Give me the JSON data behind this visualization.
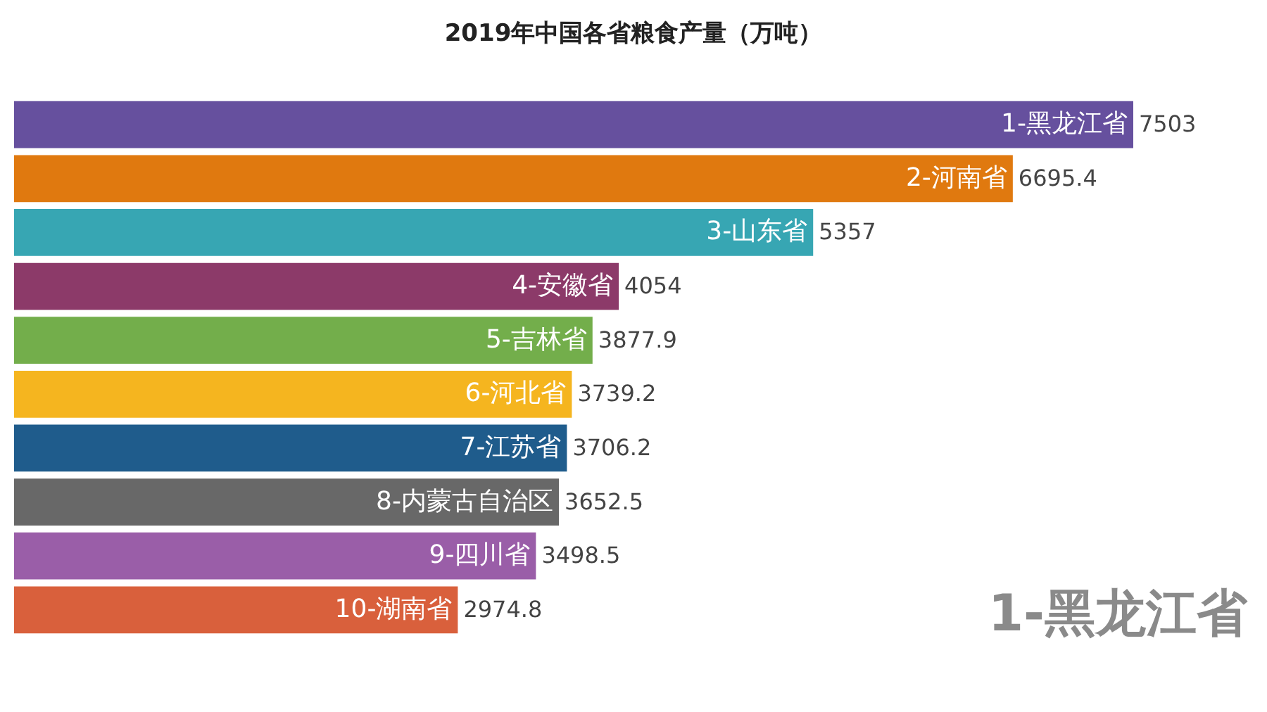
{
  "chart_data": {
    "type": "bar",
    "orientation": "horizontal",
    "title": "2019年中国各省粮食产量（万吨）",
    "categories": [
      "1-黑龙江省",
      "2-河南省",
      "3-山东省",
      "4-安徽省",
      "5-吉林省",
      "6-河北省",
      "7-江苏省",
      "8-内蒙古自治区",
      "9-四川省",
      "10-湖南省"
    ],
    "values": [
      7503,
      6695.4,
      5357,
      4054,
      3877.9,
      3739.2,
      3706.2,
      3652.5,
      3498.5,
      2974.8
    ],
    "colors": [
      "#66509e",
      "#e0790f",
      "#37a6b3",
      "#8c3a69",
      "#73ae4b",
      "#f5b51f",
      "#1f5c8c",
      "#686868",
      "#9a5ea8",
      "#d9603c"
    ],
    "data_labels": true,
    "annotations": [
      "1-黑龙江省"
    ]
  }
}
